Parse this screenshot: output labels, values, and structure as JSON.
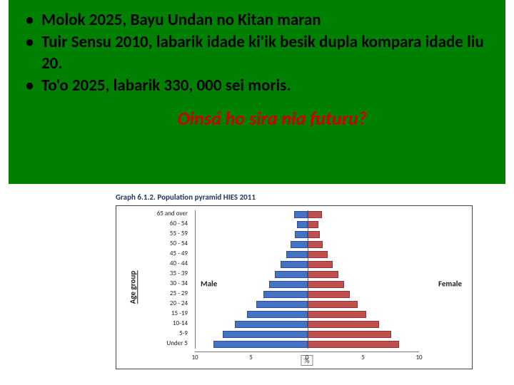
{
  "green_box": {
    "background_color": "#008000",
    "text_color": "#000000",
    "bullet_fontsize": 23,
    "bullets": [
      "Molok 2025, Bayu Undan no Kitan maran",
      "Tuir Sensu 2010, labarik idade ki'ik besik dupla kompara idade liu 20.",
      "To'o 2025, labarik 330, 000 sei moris."
    ],
    "question": "Oinsá ho sira nia futuru?",
    "question_color": "#cc0000",
    "question_fontsize": 26
  },
  "chart": {
    "type": "population_pyramid",
    "title": "Graph 6.1.2. Population pyramid HIES 2011",
    "title_color": "#1f3864",
    "title_fontsize": 11,
    "y_axis_label": "Age group",
    "x_unit_label": "%",
    "border_color": "#444444",
    "male_color": "#4472c4",
    "male_border": "#2f528f",
    "female_color": "#c0504d",
    "female_border": "#8c3836",
    "male_label": "Male",
    "female_label": "Female",
    "xlim": 10,
    "xticks_left": [
      10,
      5,
      0
    ],
    "xticks_right": [
      0,
      5,
      10
    ],
    "categories": [
      "65 and over",
      "60 - 54",
      "55 - 59",
      "50 - 54",
      "45 - 49",
      "40 - 44",
      "35 - 39",
      "30 - 34",
      "25 - 29",
      "20 - 24",
      "15 -19",
      "10-14",
      "5-9",
      "Under 5"
    ],
    "male_values": [
      1.2,
      0.9,
      1.1,
      1.5,
      1.9,
      2.4,
      2.9,
      3.4,
      3.9,
      4.6,
      5.4,
      6.5,
      7.6,
      8.4
    ],
    "female_values": [
      1.3,
      1.0,
      1.1,
      1.4,
      1.8,
      2.3,
      2.8,
      3.3,
      3.8,
      4.5,
      5.3,
      6.4,
      7.5,
      8.2
    ]
  }
}
